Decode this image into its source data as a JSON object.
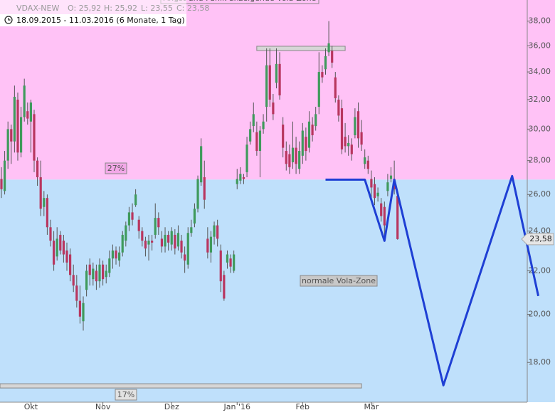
{
  "header": {
    "symbol": "VDAX-NEW",
    "open": "O: 25,92",
    "high": "H: 25,92",
    "low": "L: 23,55",
    "close": "C: 23,58",
    "range": "18.09.2015 - 11.03.2016 (6 Monate, 1 Tag)"
  },
  "chart_data": {
    "type": "candlestick",
    "log_scale": true,
    "ylim": [
      16.5,
      39.8
    ],
    "xlim": [
      -0.43,
      160.4
    ],
    "yticks": [
      {
        "value": 18,
        "label": "18,00"
      },
      {
        "value": 20,
        "label": "20,00"
      },
      {
        "value": 22,
        "label": "22,00"
      },
      {
        "value": 24,
        "label": "24,00"
      },
      {
        "value": 26,
        "label": "26,00"
      },
      {
        "value": 28,
        "label": "28,00"
      },
      {
        "value": 30,
        "label": "30,00"
      },
      {
        "value": 32,
        "label": "32,00"
      },
      {
        "value": 34,
        "label": "34,00"
      },
      {
        "value": 36,
        "label": "36,00"
      },
      {
        "value": 38,
        "label": "38,00"
      }
    ],
    "categories": [
      null,
      null,
      null,
      null,
      null,
      null,
      null,
      null,
      null,
      "Okt",
      null,
      null,
      null,
      null,
      null,
      null,
      null,
      null,
      null,
      null,
      null,
      null,
      null,
      null,
      null,
      null,
      null,
      null,
      null,
      null,
      null,
      "Nov",
      null,
      null,
      null,
      null,
      null,
      null,
      null,
      null,
      null,
      null,
      null,
      null,
      null,
      null,
      null,
      null,
      null,
      null,
      null,
      null,
      "Dez",
      null,
      null,
      null,
      null,
      null,
      null,
      null,
      null,
      null,
      null,
      null,
      null,
      null,
      null,
      null,
      null,
      null,
      null,
      null,
      "Jan '16",
      null,
      null,
      null,
      null,
      null,
      null,
      null,
      null,
      null,
      null,
      null,
      null,
      null,
      null,
      null,
      null,
      null,
      null,
      null,
      "Feb",
      null,
      null,
      null,
      null,
      null,
      null,
      null,
      null,
      null,
      null,
      null,
      null,
      null,
      null,
      null,
      null,
      null,
      null,
      null,
      null,
      "Mär",
      null,
      null,
      null,
      null,
      null,
      null,
      null,
      null
    ],
    "open": [
      26.9,
      26.2,
      28.0,
      30.0,
      29.2,
      32.0,
      28.5,
      30.8,
      31.2,
      30.5,
      31.0,
      28.0,
      27.0,
      25.3,
      25.8,
      24.2,
      23.5,
      22.7,
      23.8,
      23.5,
      23.0,
      22.8,
      21.8,
      21.3,
      20.6,
      19.7,
      21.1,
      22.3,
      21.6,
      22.0,
      21.5,
      22.3,
      21.7,
      21.9,
      22.6,
      23.0,
      22.5,
      22.9,
      23.5,
      24.3,
      25.0,
      25.4,
      24.6,
      24.0,
      23.5,
      23.3,
      23.5,
      23.8,
      24.7,
      23.6,
      23.2,
      23.8,
      23.3,
      23.8,
      23.2,
      23.5,
      22.8,
      22.3,
      23.9,
      24.4,
      25.2,
      26.7,
      27.0,
      23.6,
      22.9,
      23.7,
      24.3,
      23.0,
      21.8,
      22.4,
      22.6,
      22.0,
      26.6,
      26.8,
      27.0,
      27.3,
      29.2,
      30.2,
      29.8,
      28.6,
      30.0,
      31.5,
      34.5,
      31.8,
      33.2,
      34.6,
      30.3,
      28.6,
      28.4,
      27.9,
      28.8,
      27.5,
      28.3,
      29.5,
      28.8,
      30.3,
      30.2,
      31.5,
      34.0,
      34.2,
      35.5,
      35.6,
      33.6,
      32.0,
      31.4,
      29.5,
      28.9,
      29.0,
      29.6,
      31.2,
      29.8,
      27.8,
      28.0,
      26.9,
      26.6,
      25.9,
      25.5,
      25.3,
      26.2,
      26.9,
      26.9,
      25.92
    ],
    "high": [
      27.6,
      28.6,
      30.5,
      30.3,
      33.0,
      32.5,
      31.5,
      33.5,
      31.8,
      32.0,
      31.3,
      28.2,
      28.0,
      26.2,
      26.0,
      24.6,
      24.0,
      24.2,
      24.0,
      23.8,
      23.4,
      23.1,
      22.3,
      21.8,
      21.3,
      20.8,
      22.3,
      22.6,
      22.4,
      22.3,
      22.6,
      22.5,
      22.3,
      23.0,
      23.3,
      23.2,
      23.2,
      24.0,
      24.5,
      25.3,
      25.5,
      26.3,
      24.8,
      24.2,
      23.7,
      23.8,
      23.8,
      25.5,
      25.0,
      24.0,
      24.2,
      24.0,
      24.2,
      24.1,
      24.3,
      23.8,
      23.2,
      24.2,
      24.6,
      25.5,
      27.1,
      29.4,
      28.0,
      24.2,
      24.0,
      24.5,
      24.6,
      23.3,
      22.0,
      23.0,
      22.8,
      23.0,
      27.5,
      27.6,
      27.2,
      29.5,
      30.5,
      31.8,
      30.5,
      30.2,
      31.0,
      35.8,
      35.8,
      32.4,
      35.8,
      35.5,
      30.8,
      29.2,
      29.0,
      30.5,
      29.5,
      29.2,
      30.4,
      30.1,
      31.2,
      30.8,
      31.5,
      35.5,
      34.5,
      35.8,
      38.0,
      36.0,
      34.0,
      32.3,
      32.0,
      30.4,
      29.6,
      29.4,
      31.4,
      31.8,
      30.6,
      28.7,
      28.3,
      27.4,
      27.0,
      26.4,
      25.8,
      25.6,
      27.2,
      27.6,
      28.0,
      25.92
    ],
    "low": [
      25.8,
      26.0,
      27.5,
      27.8,
      28.5,
      28.0,
      28.2,
      30.5,
      30.3,
      28.5,
      27.3,
      26.5,
      24.8,
      24.8,
      23.8,
      23.2,
      22.0,
      22.5,
      22.8,
      22.4,
      22.0,
      21.5,
      21.0,
      20.3,
      19.6,
      19.3,
      20.8,
      21.3,
      21.3,
      21.1,
      21.2,
      21.3,
      21.4,
      21.7,
      22.1,
      22.3,
      22.2,
      22.7,
      23.2,
      24.0,
      24.3,
      25.3,
      23.6,
      23.2,
      22.7,
      22.5,
      23.0,
      23.6,
      23.8,
      22.9,
      22.9,
      23.0,
      23.0,
      22.8,
      23.0,
      22.6,
      21.9,
      22.1,
      23.7,
      24.2,
      25.0,
      26.5,
      25.2,
      22.6,
      22.4,
      23.3,
      23.2,
      21.0,
      20.6,
      22.1,
      21.9,
      21.9,
      26.3,
      26.6,
      26.6,
      27.0,
      29.0,
      29.8,
      28.3,
      27.0,
      29.7,
      30.5,
      31.5,
      30.6,
      32.8,
      32.0,
      28.2,
      27.4,
      27.2,
      27.5,
      27.2,
      27.2,
      27.8,
      28.0,
      28.5,
      29.2,
      29.9,
      31.0,
      33.2,
      33.8,
      35.2,
      34.3,
      31.8,
      30.5,
      28.4,
      28.5,
      28.3,
      28.0,
      29.4,
      28.8,
      28.6,
      27.5,
      27.2,
      25.8,
      25.4,
      25.6,
      24.5,
      23.5,
      25.9,
      26.7,
      26.0,
      23.55
    ],
    "close": [
      26.3,
      28.0,
      30.0,
      29.2,
      32.2,
      28.5,
      30.8,
      33.0,
      30.7,
      31.8,
      28.0,
      27.0,
      25.2,
      25.8,
      24.2,
      23.5,
      22.3,
      23.6,
      23.0,
      22.8,
      22.4,
      21.8,
      21.3,
      20.6,
      19.9,
      20.5,
      22.0,
      21.8,
      22.1,
      21.5,
      22.3,
      21.6,
      22.0,
      22.6,
      23.0,
      22.6,
      22.9,
      23.8,
      24.3,
      25.0,
      24.6,
      26.0,
      24.0,
      23.5,
      23.1,
      23.5,
      23.4,
      24.7,
      24.2,
      23.2,
      23.8,
      23.4,
      24.0,
      23.1,
      23.9,
      22.9,
      22.5,
      23.9,
      24.2,
      25.2,
      26.9,
      28.9,
      25.7,
      22.9,
      23.7,
      24.3,
      23.6,
      21.5,
      20.7,
      22.8,
      22.2,
      22.8,
      26.9,
      27.2,
      26.9,
      29.0,
      30.0,
      31.0,
      28.6,
      29.9,
      30.5,
      34.5,
      32.0,
      31.0,
      34.6,
      32.3,
      28.8,
      27.8,
      27.6,
      28.8,
      27.8,
      28.6,
      29.9,
      28.6,
      30.5,
      29.6,
      31.0,
      34.0,
      33.6,
      35.2,
      36.2,
      34.7,
      32.1,
      30.9,
      28.7,
      28.9,
      29.1,
      28.4,
      30.8,
      29.4,
      29.0,
      28.2,
      27.5,
      26.4,
      25.8,
      26.1,
      24.8,
      24.3,
      26.7,
      27.1,
      26.3,
      23.58
    ],
    "up_color": "#3f9a5c",
    "down_color": "#b8365f",
    "zones": [
      {
        "from": 26.86,
        "to": 39.8,
        "color": "#ffc2f6"
      },
      {
        "from": 16.5,
        "to": 26.86,
        "color": "#bfe0fb"
      }
    ],
    "levels": [
      {
        "value": 35.8,
        "from": 78,
        "to": 105
      },
      {
        "value": 17.1,
        "from": -0.43,
        "to": 110
      }
    ],
    "forecast": {
      "color": "#1e3fd4",
      "x": [
        99,
        111,
        117,
        120,
        135,
        156,
        164
      ],
      "values": [
        26.86,
        26.86,
        23.49,
        26.86,
        17.12,
        27.07,
        20.82
      ]
    },
    "last_price": {
      "value": 23.58,
      "label": "23,58"
    },
    "annotations": {
      "upper_zone": "Angst und Panik anzeigende Vola-Zone",
      "upper_pct": "27%",
      "lower_pct": "17%",
      "lower_zone": "normale Vola-Zone"
    }
  }
}
